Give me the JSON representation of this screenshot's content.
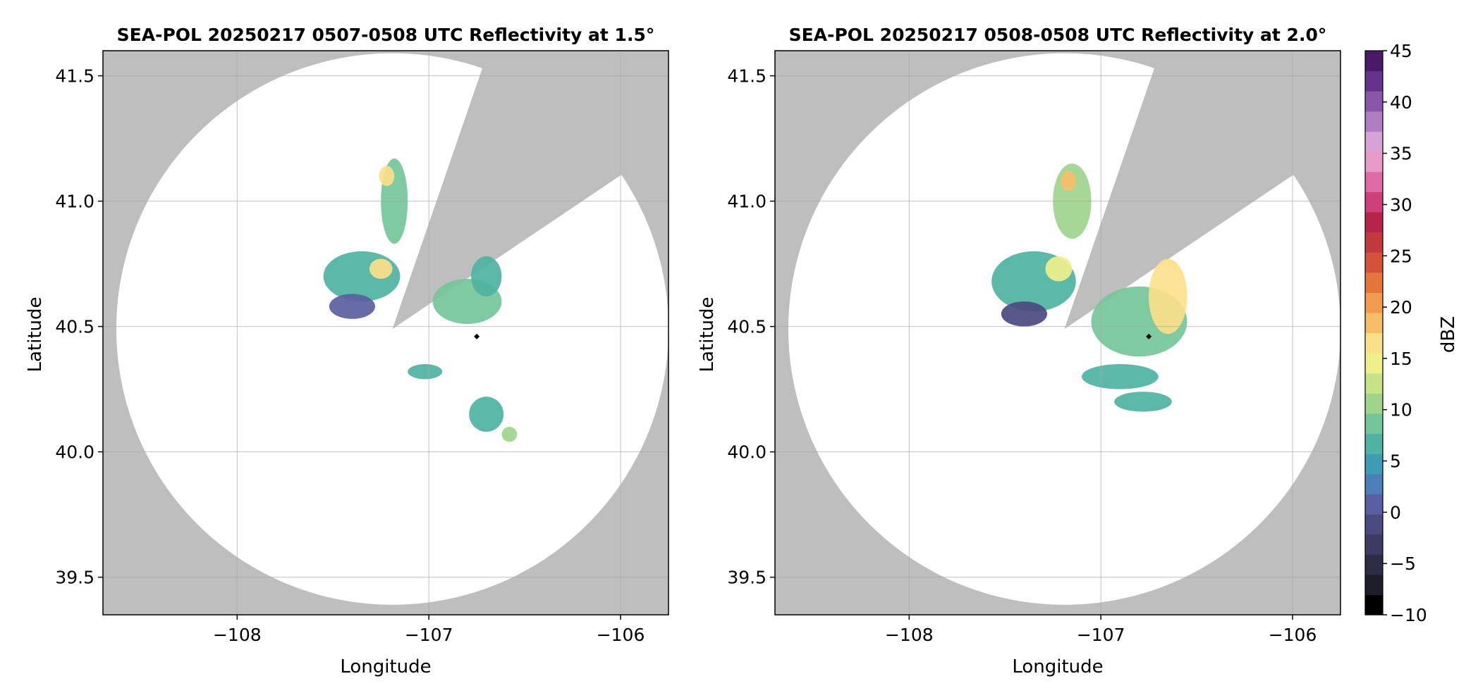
{
  "chart_data": [
    {
      "type": "heatmap",
      "title": "SEA-POL 20250217 0507-0508 UTC Reflectivity at 1.5°",
      "xlabel": "Longitude",
      "ylabel": "Latitude",
      "xlim": [
        -108.7,
        -105.75
      ],
      "ylim": [
        39.35,
        41.6
      ],
      "x_ticks": [
        -108,
        -107,
        -106
      ],
      "x_tick_labels": [
        "−108",
        "−107",
        "−106"
      ],
      "y_ticks": [
        39.5,
        40.0,
        40.5,
        41.0,
        41.5
      ],
      "y_tick_labels": [
        "39.5",
        "40.0",
        "40.5",
        "41.0",
        "41.5"
      ],
      "grid": true,
      "radar_location": {
        "lon": -107.19,
        "lat": 40.49
      },
      "radar_range_deg_lat": 1.1,
      "blocked_sector_azimuth_deg": [
        19,
        56
      ],
      "marker": {
        "lon": -106.75,
        "lat": 40.46
      },
      "echo_regions": [
        {
          "lon": -107.35,
          "lat": 40.7,
          "rx": 0.2,
          "ry": 0.1,
          "dbz": 10
        },
        {
          "lon": -107.25,
          "lat": 40.73,
          "rx": 0.06,
          "ry": 0.04,
          "dbz": 23
        },
        {
          "lon": -107.4,
          "lat": 40.58,
          "rx": 0.12,
          "ry": 0.05,
          "dbz": 3
        },
        {
          "lon": -107.18,
          "lat": 41.0,
          "rx": 0.07,
          "ry": 0.17,
          "dbz": 14
        },
        {
          "lon": -107.22,
          "lat": 41.1,
          "rx": 0.04,
          "ry": 0.04,
          "dbz": 24
        },
        {
          "lon": -106.8,
          "lat": 40.6,
          "rx": 0.18,
          "ry": 0.09,
          "dbz": 14
        },
        {
          "lon": -106.7,
          "lat": 40.7,
          "rx": 0.08,
          "ry": 0.08,
          "dbz": 11
        },
        {
          "lon": -107.02,
          "lat": 40.32,
          "rx": 0.09,
          "ry": 0.03,
          "dbz": 10
        },
        {
          "lon": -106.7,
          "lat": 40.15,
          "rx": 0.09,
          "ry": 0.07,
          "dbz": 11
        },
        {
          "lon": -106.58,
          "lat": 40.07,
          "rx": 0.04,
          "ry": 0.03,
          "dbz": 16
        }
      ]
    },
    {
      "type": "heatmap",
      "title": "SEA-POL 20250217 0508-0508 UTC Reflectivity at 2.0°",
      "xlabel": "Longitude",
      "ylabel": "Latitude",
      "xlim": [
        -108.7,
        -105.75
      ],
      "ylim": [
        39.35,
        41.6
      ],
      "x_ticks": [
        -108,
        -107,
        -106
      ],
      "x_tick_labels": [
        "−108",
        "−107",
        "−106"
      ],
      "y_ticks": [
        39.5,
        40.0,
        40.5,
        41.0,
        41.5
      ],
      "y_tick_labels": [
        "39.5",
        "40.0",
        "40.5",
        "41.0",
        "41.5"
      ],
      "grid": true,
      "radar_location": {
        "lon": -107.19,
        "lat": 40.49
      },
      "radar_range_deg_lat": 1.1,
      "blocked_sector_azimuth_deg": [
        19,
        56
      ],
      "marker": {
        "lon": -106.75,
        "lat": 40.46
      },
      "echo_regions": [
        {
          "lon": -107.35,
          "lat": 40.68,
          "rx": 0.22,
          "ry": 0.12,
          "dbz": 12
        },
        {
          "lon": -107.22,
          "lat": 40.73,
          "rx": 0.07,
          "ry": 0.05,
          "dbz": 20
        },
        {
          "lon": -107.4,
          "lat": 40.55,
          "rx": 0.12,
          "ry": 0.05,
          "dbz": 2
        },
        {
          "lon": -107.15,
          "lat": 41.0,
          "rx": 0.1,
          "ry": 0.15,
          "dbz": 16
        },
        {
          "lon": -107.17,
          "lat": 41.08,
          "rx": 0.04,
          "ry": 0.04,
          "dbz": 25
        },
        {
          "lon": -106.8,
          "lat": 40.52,
          "rx": 0.25,
          "ry": 0.14,
          "dbz": 14
        },
        {
          "lon": -106.65,
          "lat": 40.62,
          "rx": 0.1,
          "ry": 0.15,
          "dbz": 23
        },
        {
          "lon": -106.9,
          "lat": 40.3,
          "rx": 0.2,
          "ry": 0.05,
          "dbz": 11
        },
        {
          "lon": -106.78,
          "lat": 40.2,
          "rx": 0.15,
          "ry": 0.04,
          "dbz": 12
        }
      ]
    }
  ],
  "colorbar": {
    "label": "dBZ",
    "min": -10,
    "max": 45,
    "step": 2.5,
    "ticks": [
      45,
      40,
      35,
      30,
      25,
      20,
      15,
      10,
      5,
      0,
      -5,
      -10
    ],
    "tick_labels": [
      "45",
      "40",
      "35",
      "30",
      "25",
      "20",
      "15",
      "10",
      "5",
      "0",
      "−5",
      "−10"
    ],
    "colors": [
      "#000000",
      "#1d1d29",
      "#2c2c45",
      "#3b3b63",
      "#4a4a80",
      "#5b5ea1",
      "#4d7fb8",
      "#3e9db5",
      "#4fb3a0",
      "#75c59a",
      "#9fd48d",
      "#c6e387",
      "#eef08c",
      "#fbe08b",
      "#f7be6a",
      "#f19a50",
      "#e4753d",
      "#d4523a",
      "#c23a3e",
      "#b8234a",
      "#cf3f7a",
      "#e06aa3",
      "#e79bc7",
      "#d7a2d6",
      "#b07cc2",
      "#8a57a8",
      "#66338c",
      "#4a1a68"
    ]
  },
  "colors": {
    "background_mask": "#bebebe",
    "grid": "#a8a8a8",
    "marker": "#000000"
  }
}
